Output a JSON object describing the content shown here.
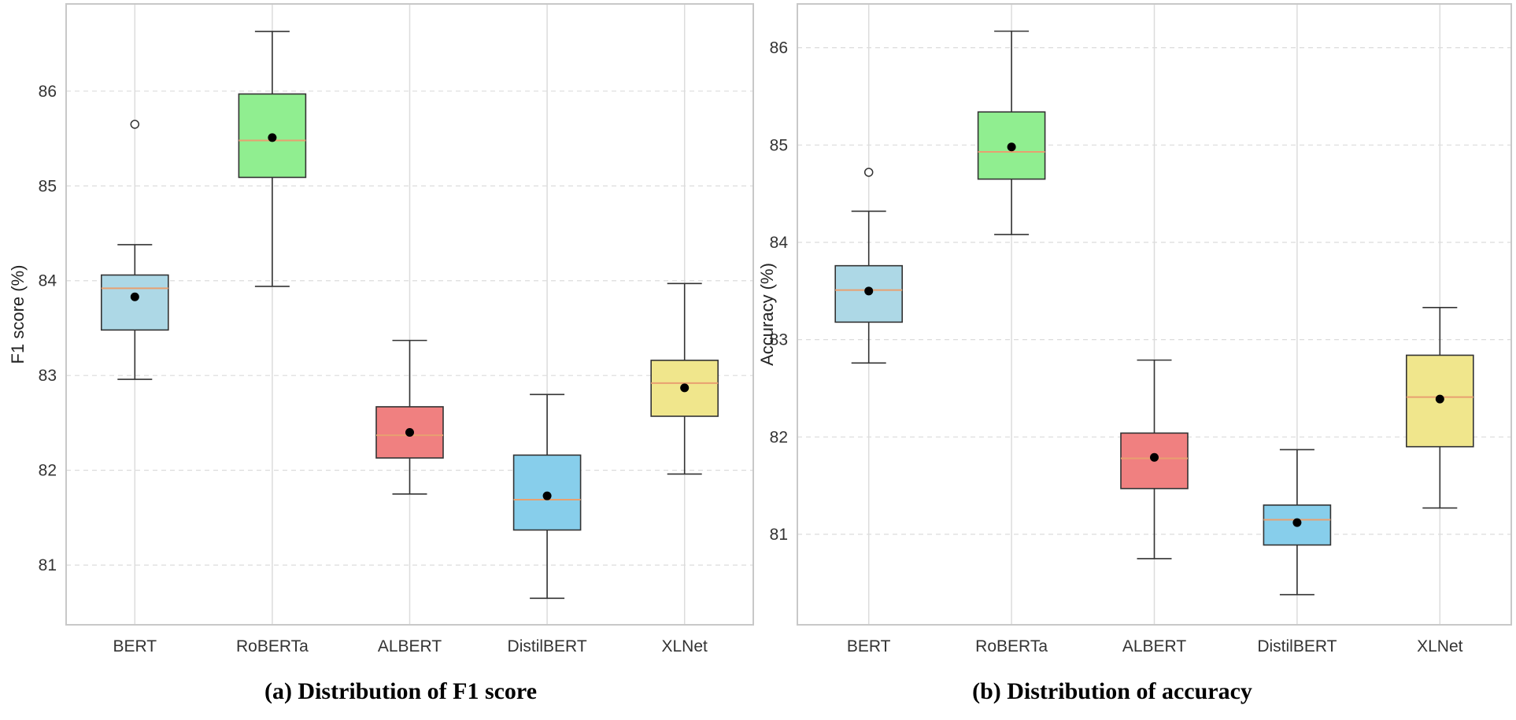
{
  "colors": {
    "BERT": "#add8e6",
    "RoBERTa": "#90ee90",
    "ALBERT": "#f08080",
    "DistilBERT": "#87ceeb",
    "XLNet": "#f0e68c",
    "median": "#e8a070",
    "mean": "#000000",
    "grid": "#dcdcdc",
    "axis": "#c8c8c8"
  },
  "chart_data": [
    {
      "type": "box",
      "caption": "(a) Distribution of F1 score",
      "ylabel": "F1 score (%)",
      "xlabel": "",
      "ylim": [
        80.37,
        86.92
      ],
      "yticks": [
        81,
        82,
        83,
        84,
        85,
        86
      ],
      "grid": true,
      "categories": [
        "BERT",
        "RoBERTa",
        "ALBERT",
        "DistilBERT",
        "XLNet"
      ],
      "boxes": [
        {
          "name": "BERT",
          "whisker_low": 82.96,
          "q1": 83.48,
          "median": 83.92,
          "q3": 84.06,
          "whisker_high": 84.38,
          "mean": 83.83,
          "outliers": [
            85.65
          ]
        },
        {
          "name": "RoBERTa",
          "whisker_low": 83.94,
          "q1": 85.09,
          "median": 85.48,
          "q3": 85.97,
          "whisker_high": 86.63,
          "mean": 85.51,
          "outliers": []
        },
        {
          "name": "ALBERT",
          "whisker_low": 81.75,
          "q1": 82.13,
          "median": 82.37,
          "q3": 82.67,
          "whisker_high": 83.37,
          "mean": 82.4,
          "outliers": []
        },
        {
          "name": "DistilBERT",
          "whisker_low": 80.65,
          "q1": 81.37,
          "median": 81.69,
          "q3": 82.16,
          "whisker_high": 82.8,
          "mean": 81.73,
          "outliers": []
        },
        {
          "name": "XLNet",
          "whisker_low": 81.96,
          "q1": 82.57,
          "median": 82.92,
          "q3": 83.16,
          "whisker_high": 83.97,
          "mean": 82.87,
          "outliers": []
        }
      ]
    },
    {
      "type": "box",
      "caption": "(b) Distribution of accuracy",
      "ylabel": "Accuracy (%)",
      "xlabel": "",
      "ylim": [
        80.07,
        86.45
      ],
      "yticks": [
        81,
        82,
        83,
        84,
        85,
        86
      ],
      "grid": true,
      "categories": [
        "BERT",
        "RoBERTa",
        "ALBERT",
        "DistilBERT",
        "XLNet"
      ],
      "boxes": [
        {
          "name": "BERT",
          "whisker_low": 82.76,
          "q1": 83.18,
          "median": 83.51,
          "q3": 83.76,
          "whisker_high": 84.32,
          "mean": 83.5,
          "outliers": [
            84.72
          ]
        },
        {
          "name": "RoBERTa",
          "whisker_low": 84.08,
          "q1": 84.65,
          "median": 84.93,
          "q3": 85.34,
          "whisker_high": 86.17,
          "mean": 84.98,
          "outliers": []
        },
        {
          "name": "ALBERT",
          "whisker_low": 80.75,
          "q1": 81.47,
          "median": 81.78,
          "q3": 82.04,
          "whisker_high": 82.79,
          "mean": 81.79,
          "outliers": []
        },
        {
          "name": "DistilBERT",
          "whisker_low": 80.38,
          "q1": 80.89,
          "median": 81.15,
          "q3": 81.3,
          "whisker_high": 81.87,
          "mean": 81.12,
          "outliers": []
        },
        {
          "name": "XLNet",
          "whisker_low": 81.27,
          "q1": 81.9,
          "median": 82.41,
          "q3": 82.84,
          "whisker_high": 83.33,
          "mean": 82.39,
          "outliers": []
        }
      ]
    }
  ]
}
